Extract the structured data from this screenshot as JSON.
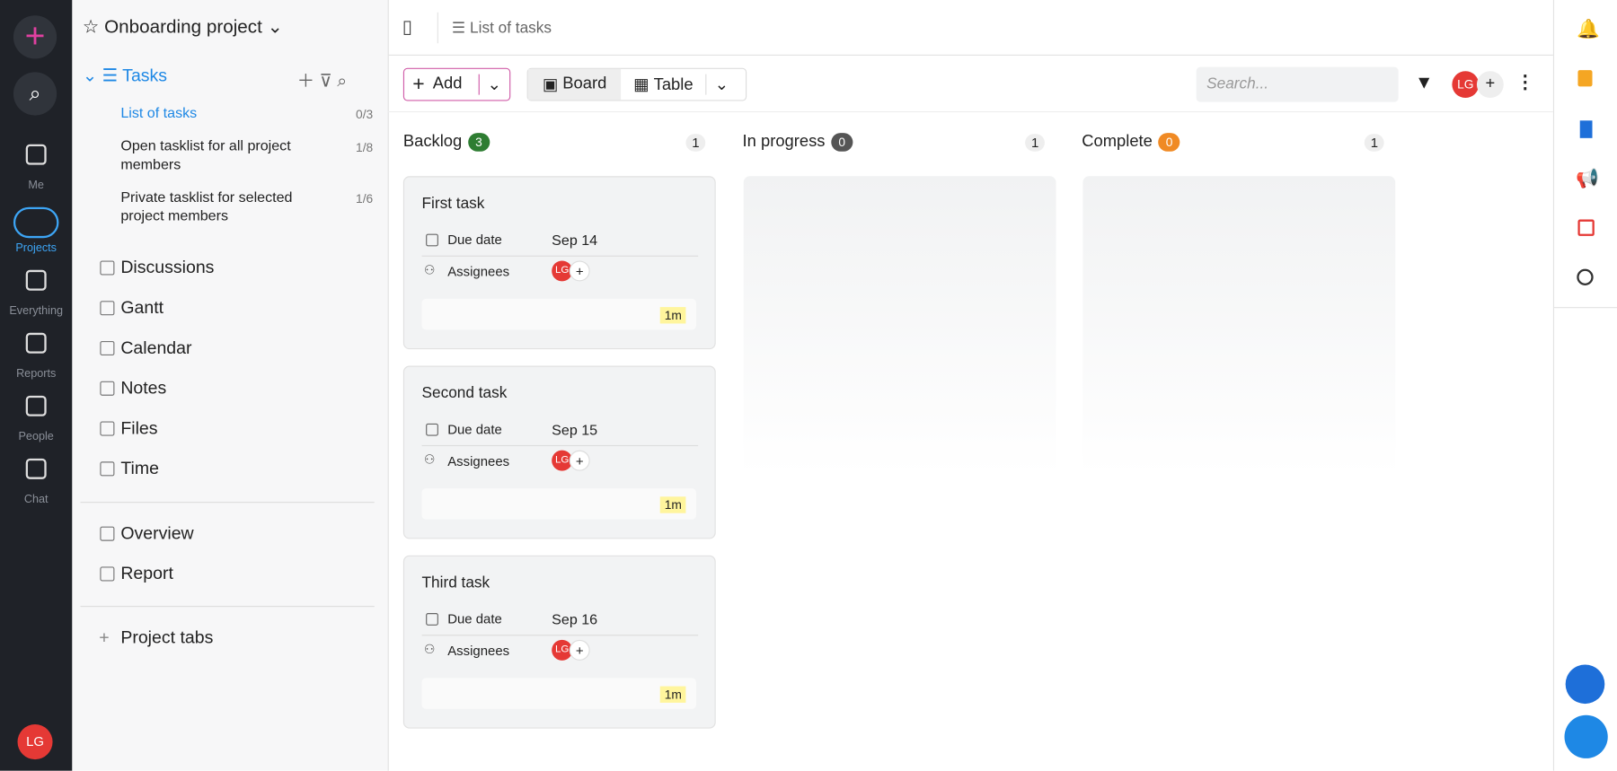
{
  "header": {
    "project": "Onboarding project",
    "breadcrumb": "List of tasks"
  },
  "rail": {
    "items": [
      "Me",
      "Projects",
      "Everything",
      "Reports",
      "People",
      "Chat"
    ],
    "avatar": "LG"
  },
  "sidebar": {
    "section": "Tasks",
    "tasklists": [
      {
        "name": "List of tasks",
        "count": "0/3"
      },
      {
        "name": "Open tasklist for all project members",
        "count": "1/8"
      },
      {
        "name": "Private tasklist for selected project members",
        "count": "1/6"
      }
    ],
    "nav": [
      "Discussions",
      "Gantt",
      "Calendar",
      "Notes",
      "Files",
      "Time"
    ],
    "extra": [
      "Overview",
      "Report"
    ],
    "tabs": "Project tabs"
  },
  "toolbar": {
    "add": "Add",
    "board": "Board",
    "table": "Table",
    "search": "Search...",
    "avatar": "LG"
  },
  "columns": [
    {
      "name": "Backlog",
      "count": "3",
      "color": "#2e7d32",
      "members": "1",
      "tasks": [
        {
          "title": "First task",
          "due_label": "Due date",
          "due": "Sep 14",
          "assignees_label": "Assignees",
          "avatar": "LG",
          "time": "1m"
        },
        {
          "title": "Second task",
          "due_label": "Due date",
          "due": "Sep 15",
          "assignees_label": "Assignees",
          "avatar": "LG",
          "time": "1m"
        },
        {
          "title": "Third task",
          "due_label": "Due date",
          "due": "Sep 16",
          "assignees_label": "Assignees",
          "avatar": "LG",
          "time": "1m"
        }
      ]
    },
    {
      "name": "In progress",
      "count": "0",
      "color": "#555555",
      "members": "1",
      "tasks": []
    },
    {
      "name": "Complete",
      "count": "0",
      "color": "#f08a24",
      "members": "1",
      "tasks": []
    }
  ]
}
